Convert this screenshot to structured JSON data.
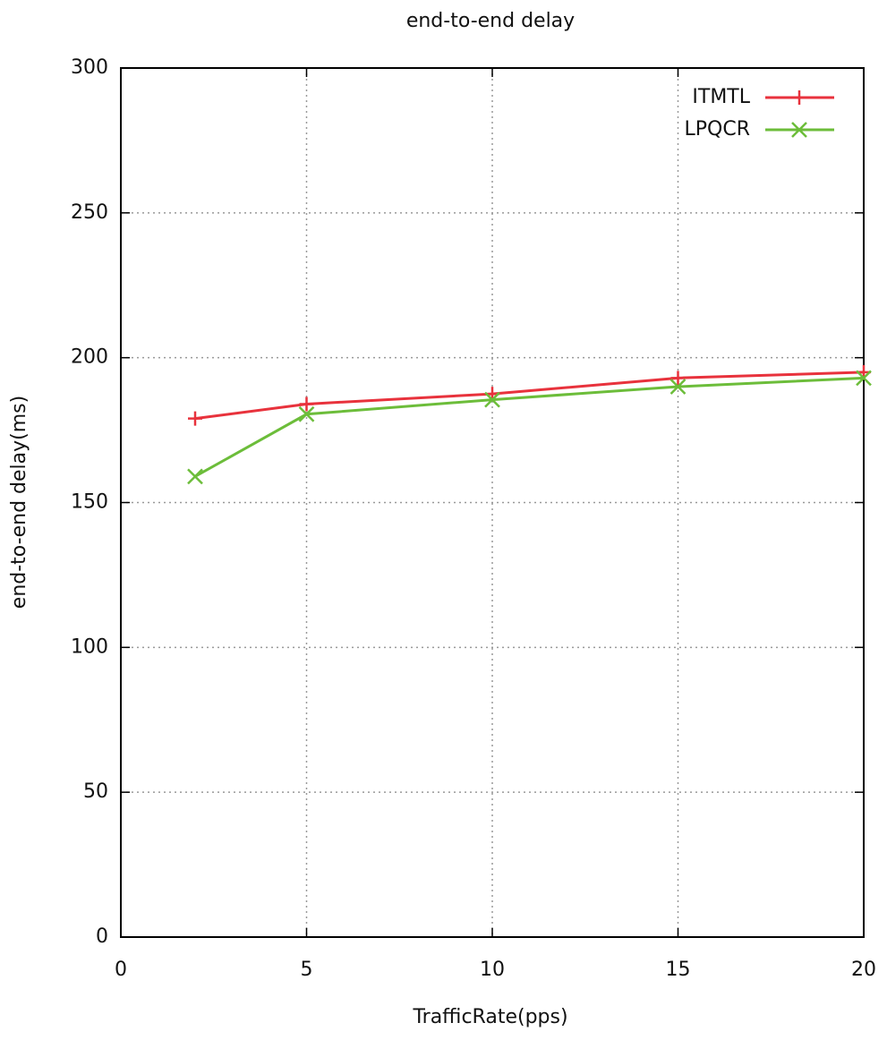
{
  "chart_data": {
    "type": "line",
    "title": "end-to-end delay",
    "x_label": "TrafficRate(pps)",
    "y_label": "end-to-end delay(ms)",
    "x": [
      2,
      5,
      10,
      15,
      20
    ],
    "series": [
      {
        "name": "ITMTL",
        "color": "#e8323c",
        "marker": "plus",
        "values": [
          179,
          184,
          187.5,
          193,
          195
        ]
      },
      {
        "name": "LPQCR",
        "color": "#6cbd3a",
        "marker": "cross",
        "values": [
          159,
          180.5,
          185.5,
          190,
          193
        ]
      }
    ],
    "xlim": [
      0,
      20
    ],
    "xticks": [
      0,
      5,
      10,
      15,
      20
    ],
    "ylim": [
      0,
      300
    ],
    "yticks": [
      0,
      50,
      100,
      150,
      200,
      250,
      300
    ],
    "grid": true,
    "legend": "top-right"
  }
}
